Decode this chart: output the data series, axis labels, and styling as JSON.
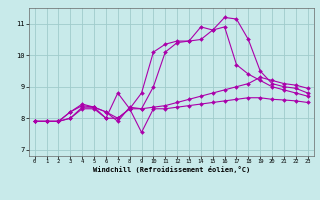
{
  "bg_color": "#c8eaea",
  "grid_color": "#a0cccc",
  "line_color": "#aa00aa",
  "xlabel": "Windchill (Refroidissement éolien,°C)",
  "xlim": [
    -0.5,
    23.5
  ],
  "ylim": [
    6.8,
    11.5
  ],
  "yticks": [
    7,
    8,
    9,
    10,
    11
  ],
  "xticks": [
    0,
    1,
    2,
    3,
    4,
    5,
    6,
    7,
    8,
    9,
    10,
    11,
    12,
    13,
    14,
    15,
    16,
    17,
    18,
    19,
    20,
    21,
    22,
    23
  ],
  "series": [
    {
      "x": [
        0,
        1,
        2,
        3,
        4,
        5,
        6,
        7,
        8,
        9,
        10,
        11,
        12,
        13,
        14,
        15,
        16,
        17,
        18,
        19,
        20,
        21,
        22,
        23
      ],
      "y": [
        7.9,
        7.9,
        7.9,
        8.0,
        8.3,
        8.3,
        8.0,
        8.8,
        8.3,
        7.55,
        8.3,
        8.3,
        8.35,
        8.4,
        8.45,
        8.5,
        8.55,
        8.6,
        8.65,
        8.65,
        8.6,
        8.58,
        8.55,
        8.5
      ]
    },
    {
      "x": [
        0,
        1,
        2,
        3,
        4,
        5,
        6,
        7,
        8,
        9,
        10,
        11,
        12,
        13,
        14,
        15,
        16,
        17,
        18,
        19,
        20,
        21,
        22,
        23
      ],
      "y": [
        7.9,
        7.9,
        7.9,
        8.0,
        8.35,
        8.35,
        8.0,
        8.0,
        8.3,
        8.3,
        8.35,
        8.4,
        8.5,
        8.6,
        8.7,
        8.8,
        8.9,
        9.0,
        9.1,
        9.3,
        9.2,
        9.1,
        9.05,
        8.95
      ]
    },
    {
      "x": [
        0,
        1,
        2,
        3,
        4,
        5,
        6,
        7,
        8,
        9,
        10,
        11,
        12,
        13,
        14,
        15,
        16,
        17,
        18,
        19,
        20,
        21,
        22,
        23
      ],
      "y": [
        7.9,
        7.9,
        7.9,
        8.2,
        8.4,
        8.35,
        8.2,
        8.0,
        8.3,
        8.8,
        10.1,
        10.35,
        10.45,
        10.45,
        10.5,
        10.8,
        10.9,
        9.7,
        9.4,
        9.2,
        9.0,
        8.9,
        8.8,
        8.7
      ]
    },
    {
      "x": [
        0,
        1,
        2,
        3,
        4,
        5,
        6,
        7,
        8,
        9,
        10,
        11,
        12,
        13,
        14,
        15,
        16,
        17,
        18,
        19,
        20,
        21,
        22,
        23
      ],
      "y": [
        7.9,
        7.9,
        7.9,
        8.2,
        8.45,
        8.35,
        8.2,
        7.9,
        8.35,
        8.3,
        9.0,
        10.1,
        10.4,
        10.45,
        10.9,
        10.8,
        11.2,
        11.15,
        10.5,
        9.5,
        9.1,
        9.0,
        8.95,
        8.8
      ]
    }
  ]
}
